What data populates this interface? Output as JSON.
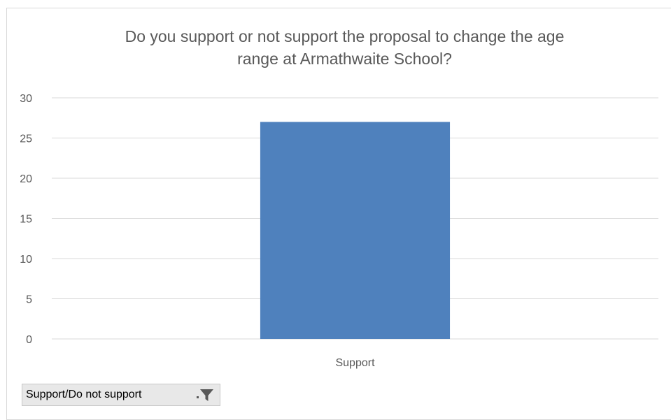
{
  "colors": {
    "bar": "#4f81bd",
    "gridline": "#d9d9d9",
    "axis_text": "#595959",
    "title_text": "#595959",
    "filter_icon": "#595959"
  },
  "chart_data": {
    "type": "bar",
    "title": "Do you support or not support the proposal to change the age\nrange at Armathwaite School?",
    "categories": [
      "Support"
    ],
    "values": [
      27
    ],
    "ylim": [
      0,
      30
    ],
    "yticks": [
      0,
      5,
      10,
      15,
      20,
      25,
      30
    ],
    "grid": true,
    "legend": "none",
    "xlabel": "",
    "ylabel": ""
  },
  "filter": {
    "label": "Support/Do not support",
    "icon": "filter-icon"
  }
}
